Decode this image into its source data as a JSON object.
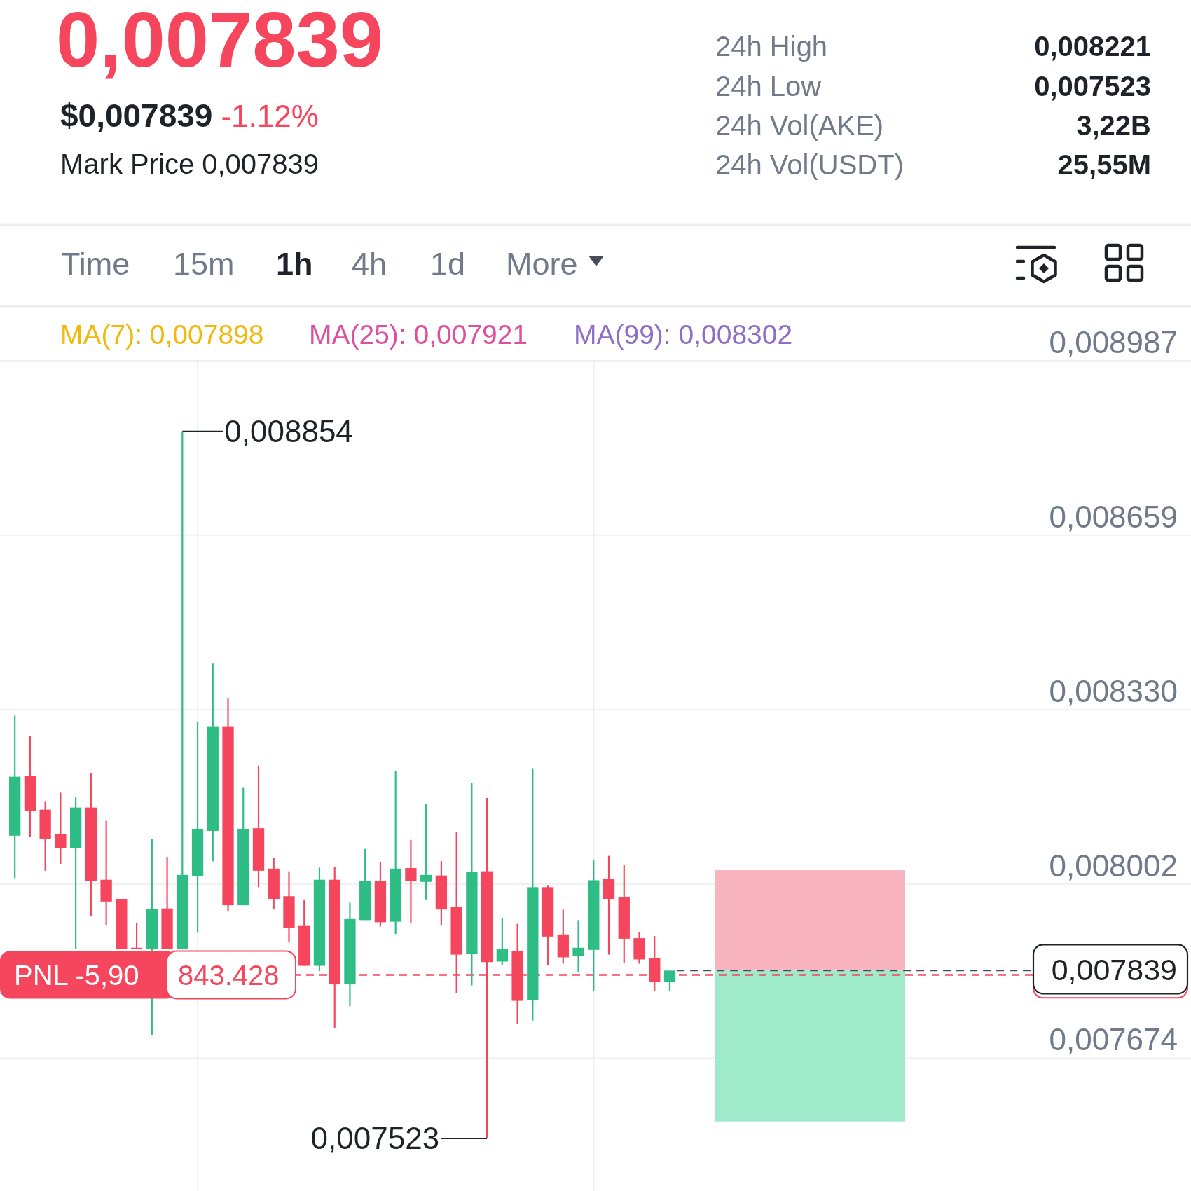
{
  "chart_data": {
    "type": "candlestick",
    "title": "0,007839",
    "categories": [
      null,
      null,
      null,
      null,
      null,
      null,
      null,
      null,
      null,
      null,
      null,
      null,
      null,
      null,
      null,
      null,
      null,
      null,
      null,
      null,
      null,
      null,
      null,
      null,
      null,
      null,
      null,
      null,
      null,
      null,
      null,
      null,
      null,
      null,
      null,
      null,
      null,
      null,
      null,
      null,
      null,
      null,
      null,
      null,
      null,
      null,
      null,
      null,
      null,
      null,
      null,
      null,
      null,
      null,
      null,
      null,
      null,
      null,
      null,
      null,
      null,
      null,
      null,
      null,
      null,
      null,
      null
    ],
    "ohlc": [
      [
        0.008093,
        0.008319,
        0.008013,
        0.008204
      ],
      [
        0.008206,
        0.008281,
        0.008091,
        0.008139
      ],
      [
        0.008142,
        0.008157,
        0.008027,
        0.008087
      ],
      [
        0.008096,
        0.008174,
        0.00804,
        0.008069
      ],
      [
        0.00807,
        0.008165,
        0.00788,
        0.008146
      ],
      [
        0.008146,
        0.00821,
        0.007942,
        0.008007
      ],
      [
        0.00801,
        0.008121,
        0.007924,
        0.007969
      ],
      [
        0.007974,
        0.007974,
        0.00788,
        0.00788
      ],
      [
        0.007882,
        0.007929,
        0.00788,
        0.00788
      ],
      [
        0.00788,
        0.008086,
        0.007718,
        0.007955
      ],
      [
        0.007956,
        0.008053,
        0.00788,
        0.00788
      ],
      [
        0.00788,
        0.008854,
        0.00788,
        0.008019
      ],
      [
        0.008017,
        0.008307,
        0.00791,
        0.008106
      ],
      [
        0.008102,
        0.008417,
        0.008045,
        0.008299
      ],
      [
        0.008299,
        0.008351,
        0.00795,
        0.007962
      ],
      [
        0.007962,
        0.008183,
        0.007962,
        0.008106
      ],
      [
        0.008107,
        0.008225,
        0.007996,
        0.008027
      ],
      [
        0.008031,
        0.008051,
        0.007954,
        0.007974
      ],
      [
        0.007979,
        0.008026,
        0.007892,
        0.00792
      ],
      [
        0.007923,
        0.007973,
        0.007848,
        0.007848
      ],
      [
        0.007848,
        0.008033,
        0.007838,
        0.00801
      ],
      [
        0.00801,
        0.008034,
        0.00773,
        0.007813
      ],
      [
        0.007813,
        0.007967,
        0.007772,
        0.007936
      ],
      [
        0.007934,
        0.008068,
        0.007934,
        0.008008
      ],
      [
        0.008008,
        0.008044,
        0.007922,
        0.00793
      ],
      [
        0.007931,
        0.008215,
        0.007908,
        0.008031
      ],
      [
        0.008032,
        0.008085,
        0.007929,
        0.008008
      ],
      [
        0.008006,
        0.008152,
        0.007973,
        0.008019
      ],
      [
        0.008018,
        0.008045,
        0.007925,
        0.007954
      ],
      [
        0.007959,
        0.0081,
        0.007797,
        0.007869
      ],
      [
        0.00787,
        0.008193,
        0.007811,
        0.008025
      ],
      [
        0.008026,
        0.008164,
        0.007523,
        0.007855
      ],
      [
        0.007856,
        0.007938,
        0.00785,
        0.007879
      ],
      [
        0.007876,
        0.007927,
        0.007738,
        0.007782
      ],
      [
        0.007783,
        0.00822,
        0.007745,
        0.007996
      ],
      [
        0.007996,
        0.008,
        0.00785,
        0.007903
      ],
      [
        0.007907,
        0.007954,
        0.007852,
        0.007864
      ],
      [
        0.007866,
        0.007934,
        0.007836,
        0.007882
      ],
      [
        0.007878,
        0.008048,
        0.007801,
        0.008009
      ],
      [
        0.008012,
        0.008055,
        0.007869,
        0.007974
      ],
      [
        0.007977,
        0.008038,
        0.007854,
        0.007899
      ],
      [
        0.0079,
        0.007912,
        0.007852,
        0.00786
      ],
      [
        0.007863,
        0.007904,
        0.0078,
        0.007817
      ],
      [
        0.007817,
        0.007839,
        0.0078,
        0.007839
      ],
      null,
      null,
      null,
      null,
      null,
      null,
      null,
      null,
      null,
      null,
      null,
      null,
      null,
      null,
      null,
      null,
      null,
      null,
      null,
      null,
      null,
      null,
      null
    ],
    "colors": [
      "#2ebd85",
      "#f6465d",
      "#f6465d",
      "#f6465d",
      "#2ebd85",
      "#f6465d",
      "#f6465d",
      "#f6465d",
      "#f6465d",
      "#2ebd85",
      "#f6465d",
      "#2ebd85",
      "#2ebd85",
      "#2ebd85",
      "#f6465d",
      "#2ebd85",
      "#f6465d",
      "#f6465d",
      "#f6465d",
      "#f6465d",
      "#2ebd85",
      "#f6465d",
      "#2ebd85",
      "#2ebd85",
      "#f6465d",
      "#2ebd85",
      "#f6465d",
      "#2ebd85",
      "#f6465d",
      "#f6465d",
      "#2ebd85",
      "#f6465d",
      "#2ebd85",
      "#f6465d",
      "#2ebd85",
      "#f6465d",
      "#f6465d",
      "#2ebd85",
      "#2ebd85",
      "#f6465d",
      "#f6465d",
      "#f6465d",
      "#f6465d",
      "#2ebd85",
      null,
      null,
      null,
      null,
      null,
      null,
      null,
      null,
      null,
      null,
      null,
      null,
      null,
      null,
      null,
      null,
      null,
      null,
      null,
      null,
      null,
      null,
      null
    ],
    "ylim": [
      0.007424,
      0.008987
    ],
    "yticks": [
      {
        "value": 0.007674,
        "label": "0,007674"
      },
      {
        "value": 0.008002,
        "label": "0,008002"
      },
      {
        "value": 0.00833,
        "label": "0,008330"
      },
      {
        "value": 0.008659,
        "label": "0,008659"
      },
      {
        "value": 0.008987,
        "label": "0,008987"
      }
    ],
    "grid": "y",
    "tick_labels": "y",
    "ref_lines": [
      {
        "axis": "y",
        "value": 0.007839,
        "label": "0,007839",
        "color": "#474d57",
        "line_style": "dashed"
      },
      {
        "axis": "y",
        "value": 0.007831,
        "label": "PNL -5,90",
        "color": "#f6465d",
        "line_style": "dashed"
      }
    ],
    "bands": [
      {
        "axis": "y",
        "from": 0.007839,
        "to": 0.008028,
        "color": "#f8b4be"
      },
      {
        "axis": "y",
        "from": 0.007555,
        "to": 0.007839,
        "color": "#9eeacb"
      }
    ],
    "annotations": [
      "$0,007839",
      "-1.12%",
      "Mark Price 0,007839",
      "24h High",
      "0,008221",
      "24h Low",
      "0,007523",
      "24h Vol(AKE)",
      "3,22B",
      "24h Vol(USDT)",
      "25,55M",
      "Time",
      "15m",
      "1h",
      "4h",
      "1d",
      "More",
      "MA(7): 0,007898",
      "MA(25): 0,007921",
      "MA(99): 0,008302",
      "0,008854",
      {
        "text": "843.428",
        "y": 0.007831
      },
      "0,007523"
    ]
  }
}
